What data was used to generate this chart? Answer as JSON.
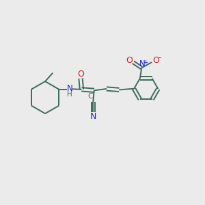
{
  "bg_color": "#ebebeb",
  "bond_color": "#3d6b5a",
  "n_color": "#2020cc",
  "o_color": "#cc2020",
  "line_width": 1.4,
  "font_size": 8.5,
  "fig_size": [
    3.0,
    3.0
  ],
  "dpi": 100,
  "xlim": [
    0,
    10
  ],
  "ylim": [
    0,
    10
  ]
}
